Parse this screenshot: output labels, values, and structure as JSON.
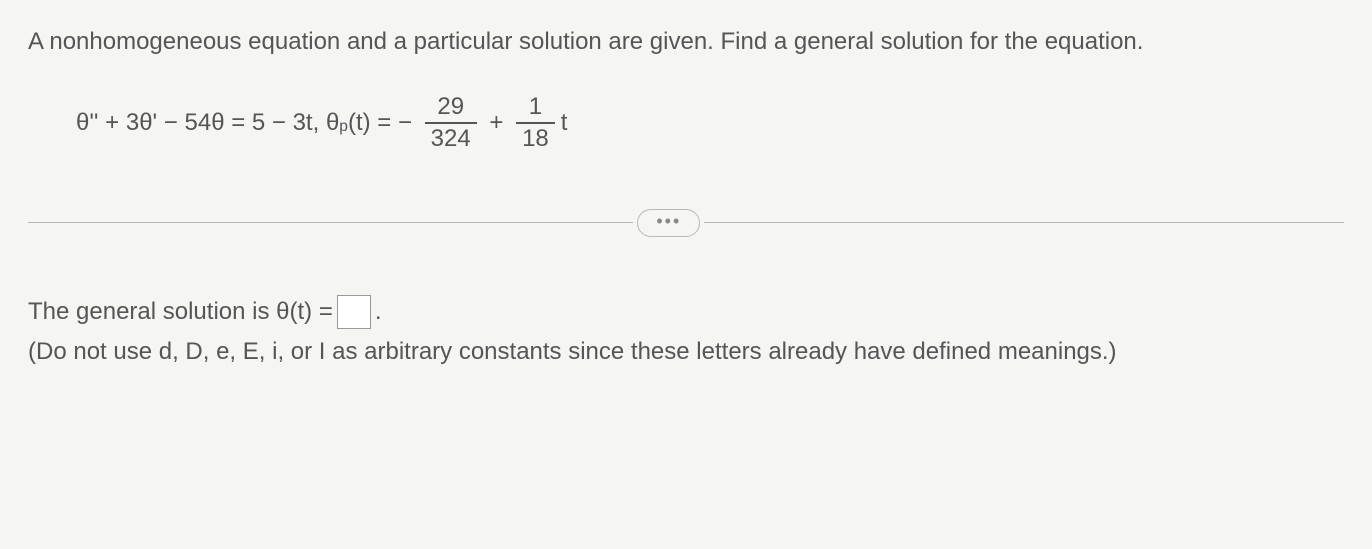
{
  "prompt": "A nonhomogeneous equation and a particular solution are given. Find a general solution for the equation.",
  "equation": {
    "lhs_prefix": "θ'' + 3θ' − 54θ = 5 − 3t, θ",
    "sub_p": "p",
    "after_sub": "(t) = − ",
    "frac1_num": "29",
    "frac1_den": "324",
    "plus": " + ",
    "frac2_num": "1",
    "frac2_den": "18",
    "trailing": "t"
  },
  "pill": "•••",
  "answer": {
    "prefix": "The general solution is θ(t) = ",
    "suffix": "."
  },
  "hint": "(Do not use d, D, e, E, i, or I as arbitrary constants since these letters already have defined meanings.)"
}
